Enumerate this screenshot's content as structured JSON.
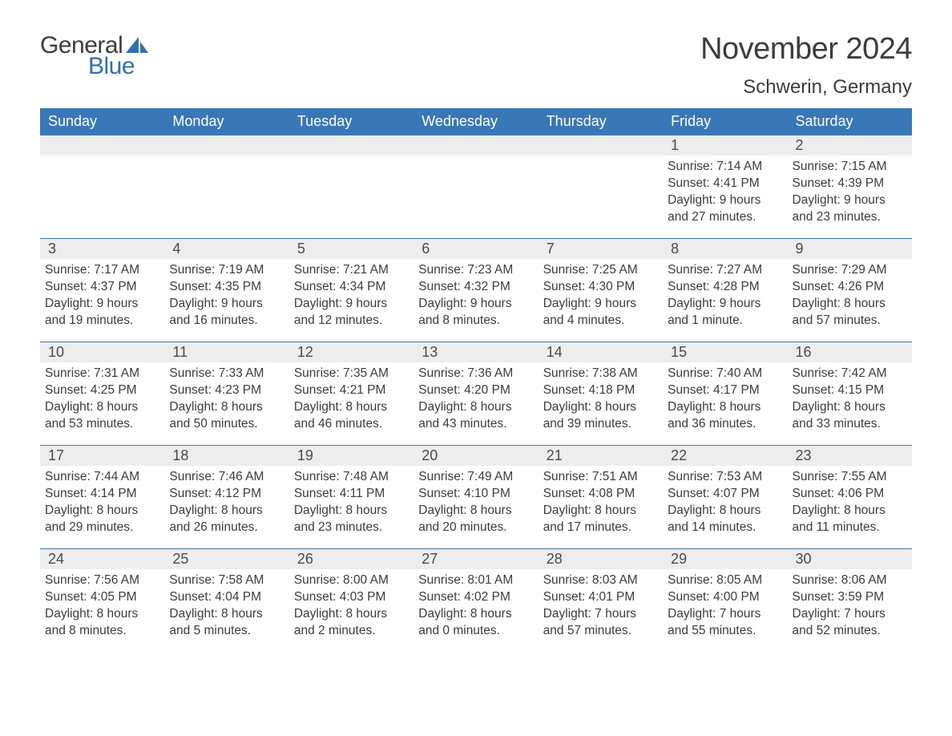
{
  "logo": {
    "text_general": "General",
    "text_blue": "Blue",
    "tri_color": "#2f6fb2"
  },
  "header": {
    "month_title": "November 2024",
    "location": "Schwerin, Germany"
  },
  "colors": {
    "header_bg": "#3a77b6",
    "header_text": "#ffffff",
    "daynum_bg": "#ededed",
    "border": "#3a77b6",
    "body_text": "#3c3c3c",
    "page_bg": "#ffffff"
  },
  "fonts": {
    "title_size_pt": 28,
    "location_size_pt": 18,
    "weekday_size_pt": 14,
    "body_size_pt": 12
  },
  "weekdays": [
    "Sunday",
    "Monday",
    "Tuesday",
    "Wednesday",
    "Thursday",
    "Friday",
    "Saturday"
  ],
  "weeks": [
    [
      null,
      null,
      null,
      null,
      null,
      {
        "n": "1",
        "sr": "Sunrise: 7:14 AM",
        "ss": "Sunset: 4:41 PM",
        "d1": "Daylight: 9 hours",
        "d2": "and 27 minutes."
      },
      {
        "n": "2",
        "sr": "Sunrise: 7:15 AM",
        "ss": "Sunset: 4:39 PM",
        "d1": "Daylight: 9 hours",
        "d2": "and 23 minutes."
      }
    ],
    [
      {
        "n": "3",
        "sr": "Sunrise: 7:17 AM",
        "ss": "Sunset: 4:37 PM",
        "d1": "Daylight: 9 hours",
        "d2": "and 19 minutes."
      },
      {
        "n": "4",
        "sr": "Sunrise: 7:19 AM",
        "ss": "Sunset: 4:35 PM",
        "d1": "Daylight: 9 hours",
        "d2": "and 16 minutes."
      },
      {
        "n": "5",
        "sr": "Sunrise: 7:21 AM",
        "ss": "Sunset: 4:34 PM",
        "d1": "Daylight: 9 hours",
        "d2": "and 12 minutes."
      },
      {
        "n": "6",
        "sr": "Sunrise: 7:23 AM",
        "ss": "Sunset: 4:32 PM",
        "d1": "Daylight: 9 hours",
        "d2": "and 8 minutes."
      },
      {
        "n": "7",
        "sr": "Sunrise: 7:25 AM",
        "ss": "Sunset: 4:30 PM",
        "d1": "Daylight: 9 hours",
        "d2": "and 4 minutes."
      },
      {
        "n": "8",
        "sr": "Sunrise: 7:27 AM",
        "ss": "Sunset: 4:28 PM",
        "d1": "Daylight: 9 hours",
        "d2": "and 1 minute."
      },
      {
        "n": "9",
        "sr": "Sunrise: 7:29 AM",
        "ss": "Sunset: 4:26 PM",
        "d1": "Daylight: 8 hours",
        "d2": "and 57 minutes."
      }
    ],
    [
      {
        "n": "10",
        "sr": "Sunrise: 7:31 AM",
        "ss": "Sunset: 4:25 PM",
        "d1": "Daylight: 8 hours",
        "d2": "and 53 minutes."
      },
      {
        "n": "11",
        "sr": "Sunrise: 7:33 AM",
        "ss": "Sunset: 4:23 PM",
        "d1": "Daylight: 8 hours",
        "d2": "and 50 minutes."
      },
      {
        "n": "12",
        "sr": "Sunrise: 7:35 AM",
        "ss": "Sunset: 4:21 PM",
        "d1": "Daylight: 8 hours",
        "d2": "and 46 minutes."
      },
      {
        "n": "13",
        "sr": "Sunrise: 7:36 AM",
        "ss": "Sunset: 4:20 PM",
        "d1": "Daylight: 8 hours",
        "d2": "and 43 minutes."
      },
      {
        "n": "14",
        "sr": "Sunrise: 7:38 AM",
        "ss": "Sunset: 4:18 PM",
        "d1": "Daylight: 8 hours",
        "d2": "and 39 minutes."
      },
      {
        "n": "15",
        "sr": "Sunrise: 7:40 AM",
        "ss": "Sunset: 4:17 PM",
        "d1": "Daylight: 8 hours",
        "d2": "and 36 minutes."
      },
      {
        "n": "16",
        "sr": "Sunrise: 7:42 AM",
        "ss": "Sunset: 4:15 PM",
        "d1": "Daylight: 8 hours",
        "d2": "and 33 minutes."
      }
    ],
    [
      {
        "n": "17",
        "sr": "Sunrise: 7:44 AM",
        "ss": "Sunset: 4:14 PM",
        "d1": "Daylight: 8 hours",
        "d2": "and 29 minutes."
      },
      {
        "n": "18",
        "sr": "Sunrise: 7:46 AM",
        "ss": "Sunset: 4:12 PM",
        "d1": "Daylight: 8 hours",
        "d2": "and 26 minutes."
      },
      {
        "n": "19",
        "sr": "Sunrise: 7:48 AM",
        "ss": "Sunset: 4:11 PM",
        "d1": "Daylight: 8 hours",
        "d2": "and 23 minutes."
      },
      {
        "n": "20",
        "sr": "Sunrise: 7:49 AM",
        "ss": "Sunset: 4:10 PM",
        "d1": "Daylight: 8 hours",
        "d2": "and 20 minutes."
      },
      {
        "n": "21",
        "sr": "Sunrise: 7:51 AM",
        "ss": "Sunset: 4:08 PM",
        "d1": "Daylight: 8 hours",
        "d2": "and 17 minutes."
      },
      {
        "n": "22",
        "sr": "Sunrise: 7:53 AM",
        "ss": "Sunset: 4:07 PM",
        "d1": "Daylight: 8 hours",
        "d2": "and 14 minutes."
      },
      {
        "n": "23",
        "sr": "Sunrise: 7:55 AM",
        "ss": "Sunset: 4:06 PM",
        "d1": "Daylight: 8 hours",
        "d2": "and 11 minutes."
      }
    ],
    [
      {
        "n": "24",
        "sr": "Sunrise: 7:56 AM",
        "ss": "Sunset: 4:05 PM",
        "d1": "Daylight: 8 hours",
        "d2": "and 8 minutes."
      },
      {
        "n": "25",
        "sr": "Sunrise: 7:58 AM",
        "ss": "Sunset: 4:04 PM",
        "d1": "Daylight: 8 hours",
        "d2": "and 5 minutes."
      },
      {
        "n": "26",
        "sr": "Sunrise: 8:00 AM",
        "ss": "Sunset: 4:03 PM",
        "d1": "Daylight: 8 hours",
        "d2": "and 2 minutes."
      },
      {
        "n": "27",
        "sr": "Sunrise: 8:01 AM",
        "ss": "Sunset: 4:02 PM",
        "d1": "Daylight: 8 hours",
        "d2": "and 0 minutes."
      },
      {
        "n": "28",
        "sr": "Sunrise: 8:03 AM",
        "ss": "Sunset: 4:01 PM",
        "d1": "Daylight: 7 hours",
        "d2": "and 57 minutes."
      },
      {
        "n": "29",
        "sr": "Sunrise: 8:05 AM",
        "ss": "Sunset: 4:00 PM",
        "d1": "Daylight: 7 hours",
        "d2": "and 55 minutes."
      },
      {
        "n": "30",
        "sr": "Sunrise: 8:06 AM",
        "ss": "Sunset: 3:59 PM",
        "d1": "Daylight: 7 hours",
        "d2": "and 52 minutes."
      }
    ]
  ]
}
